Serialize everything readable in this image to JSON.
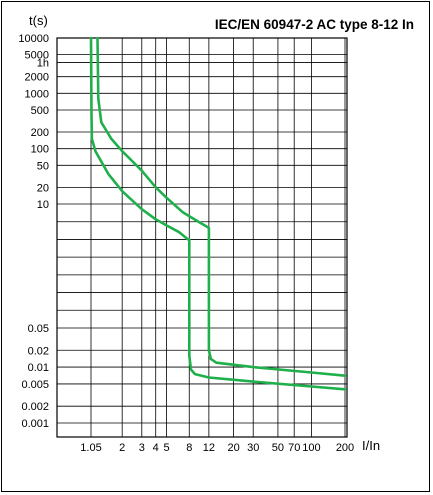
{
  "chart_data": {
    "type": "line",
    "title": "IEC/EN 60947-2 AC type 8-12 In",
    "ylabel": "t(s)",
    "xlabel": "I/In",
    "x_scale": "log",
    "xlim": [
      1,
      200
    ],
    "x_ticks": [
      {
        "v": 1.05,
        "label": "1.05"
      },
      {
        "v": 2,
        "label": "2"
      },
      {
        "v": 3,
        "label": "3"
      },
      {
        "v": 4,
        "label": "4"
      },
      {
        "v": 5,
        "label": "5"
      },
      {
        "v": 8,
        "label": "8"
      },
      {
        "v": 12,
        "label": "12"
      },
      {
        "v": 20,
        "label": "20"
      },
      {
        "v": 30,
        "label": "30"
      },
      {
        "v": 50,
        "label": "50"
      },
      {
        "v": 70,
        "label": "70"
      },
      {
        "v": 100,
        "label": "100"
      },
      {
        "v": 200,
        "label": "200"
      }
    ],
    "y_ticks": [
      {
        "v": 10000,
        "label": "10000"
      },
      {
        "v": 5000,
        "label": "5000"
      },
      {
        "v": 3600,
        "label": "1h"
      },
      {
        "v": 2000,
        "label": "2000"
      },
      {
        "v": 1000,
        "label": "1000"
      },
      {
        "v": 500,
        "label": "500"
      },
      {
        "v": 200,
        "label": "200"
      },
      {
        "v": 100,
        "label": "100"
      },
      {
        "v": 50,
        "label": "50"
      },
      {
        "v": 20,
        "label": "20"
      },
      {
        "v": 10,
        "label": "10"
      },
      {
        "v": 0.05,
        "label": "0.05"
      },
      {
        "v": 0.02,
        "label": "0.02"
      },
      {
        "v": 0.01,
        "label": "0.01"
      },
      {
        "v": 0.005,
        "label": "0.005"
      },
      {
        "v": 0.002,
        "label": "0.002"
      },
      {
        "v": 0.001,
        "label": "0.001"
      }
    ],
    "series": [
      {
        "color": "#1fb04c",
        "points": [
          [
            1.05,
            10000
          ],
          [
            1.06,
            400
          ],
          [
            1.07,
            150
          ],
          [
            1.15,
            90
          ],
          [
            1.5,
            35
          ],
          [
            2,
            17
          ],
          [
            3,
            8
          ],
          [
            4,
            5.2
          ],
          [
            5,
            4
          ],
          [
            6.5,
            3
          ],
          [
            7.8,
            2.2
          ],
          [
            8,
            2.2
          ],
          [
            8,
            0.016
          ],
          [
            8.3,
            0.009
          ],
          [
            9,
            0.0075
          ],
          [
            12,
            0.0065
          ],
          [
            30,
            0.0055
          ],
          [
            100,
            0.0045
          ],
          [
            200,
            0.004
          ]
        ]
      },
      {
        "color": "#1fb04c",
        "points": [
          [
            1.2,
            10000
          ],
          [
            1.22,
            800
          ],
          [
            1.3,
            300
          ],
          [
            1.6,
            150
          ],
          [
            2,
            90
          ],
          [
            3,
            40
          ],
          [
            4,
            20
          ],
          [
            5,
            13
          ],
          [
            7,
            7
          ],
          [
            10,
            4.5
          ],
          [
            11,
            4
          ],
          [
            12,
            3.6
          ],
          [
            12,
            0.02
          ],
          [
            12.5,
            0.014
          ],
          [
            14,
            0.012
          ],
          [
            30,
            0.01
          ],
          [
            100,
            0.008
          ],
          [
            200,
            0.007
          ]
        ]
      }
    ],
    "grid": true
  }
}
